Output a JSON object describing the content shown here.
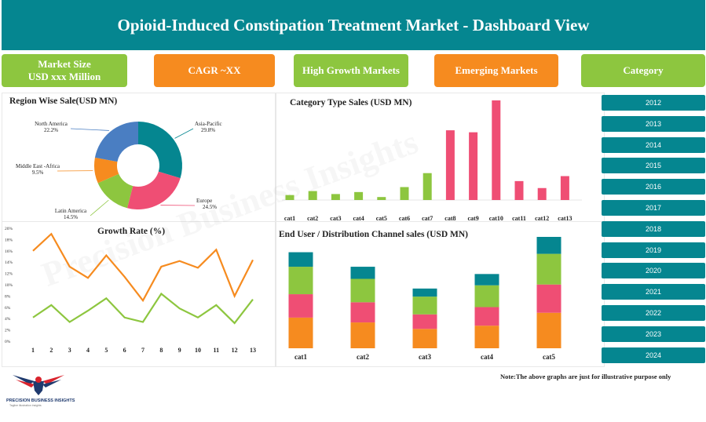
{
  "header": {
    "title": "Opioid-Induced Constipation Treatment Market - Dashboard View"
  },
  "kpis": {
    "market_size_line1": "Market Size",
    "market_size_line2": "USD xxx Million",
    "cagr": "CAGR  ~XX",
    "high_growth": "High Growth Markets",
    "emerging": "Emerging Markets",
    "category": "Category"
  },
  "year_filter": [
    "2012",
    "2013",
    "2014",
    "2015",
    "2016",
    "2017",
    "2018",
    "2019",
    "2020",
    "2021",
    "2022",
    "2023",
    "2024"
  ],
  "note": "Note:The above graphs are just for illustrative purpose only",
  "logo": {
    "name": "PRECISION BUSINESS INSIGHTS",
    "tagline": "Tagline illustration insights"
  },
  "watermark": "Precision Business Insights",
  "colors": {
    "teal": "#058690",
    "green": "#8dc63f",
    "orange": "#f68b1f",
    "pink": "#ef4e74",
    "blue": "#4a7ec2"
  },
  "chart_data": [
    {
      "type": "pie",
      "title": "Region Wise Sale(USD MN)",
      "labels": [
        "Asia-Pacific",
        "Europe",
        "Latin America",
        "Middle East -Africa",
        "North America"
      ],
      "values": [
        29.8,
        24.5,
        14.5,
        9.5,
        22.2
      ],
      "value_labels": [
        "29.8%",
        "24.5%",
        "14.5%",
        "9.5%",
        "22.2%"
      ],
      "colors": [
        "#058690",
        "#ef4e74",
        "#8dc63f",
        "#f68b1f",
        "#4a7ec2"
      ],
      "donut": true
    },
    {
      "type": "line",
      "title": "Growth Rate (%)",
      "x": [
        1,
        2,
        3,
        4,
        5,
        6,
        7,
        8,
        9,
        10,
        11,
        12,
        13
      ],
      "series": [
        {
          "color": "#f68b1f",
          "values": [
            16,
            19,
            13.2,
            11.2,
            15.2,
            11.4,
            7.2,
            13.2,
            14.2,
            13,
            16.2,
            8,
            14.4
          ]
        },
        {
          "color": "#8dc63f",
          "values": [
            4.2,
            6.4,
            3.4,
            5.4,
            7.6,
            4.2,
            3.4,
            8.4,
            5.8,
            4.2,
            6.4,
            3.2,
            7.4
          ]
        }
      ],
      "ylim": [
        0,
        20
      ],
      "yticks": [
        "0%",
        "2%",
        "4%",
        "6%",
        "8%",
        "10%",
        "12%",
        "14%",
        "16%",
        "18%",
        "20%"
      ]
    },
    {
      "type": "bar",
      "title": "Category Type Sales (USD MN)",
      "categories": [
        "cat1",
        "cat2",
        "cat3",
        "cat4",
        "cat5",
        "cat6",
        "cat7",
        "cat8",
        "cat9",
        "cat10",
        "cat11",
        "cat12",
        "cat13"
      ],
      "values": [
        5,
        9,
        6,
        8,
        3,
        13,
        27,
        70,
        68,
        100,
        19,
        12,
        24
      ],
      "colors": [
        "#8dc63f",
        "#8dc63f",
        "#8dc63f",
        "#8dc63f",
        "#8dc63f",
        "#8dc63f",
        "#8dc63f",
        "#ef4e74",
        "#ef4e74",
        "#ef4e74",
        "#ef4e74",
        "#ef4e74",
        "#ef4e74"
      ]
    },
    {
      "type": "bar",
      "stacked": true,
      "title": "End User / Distribution Channel sales (USD MN)",
      "categories": [
        "cat1",
        "cat2",
        "cat3",
        "cat4",
        "cat5"
      ],
      "series": [
        {
          "color": "#f68b1f",
          "values": [
            38,
            32,
            24,
            28,
            44
          ]
        },
        {
          "color": "#ef4e74",
          "values": [
            29,
            25,
            18,
            23,
            35
          ]
        },
        {
          "color": "#8dc63f",
          "values": [
            34,
            29,
            22,
            27,
            38
          ]
        },
        {
          "color": "#058690",
          "values": [
            18,
            15,
            10,
            14,
            21
          ]
        }
      ]
    }
  ]
}
